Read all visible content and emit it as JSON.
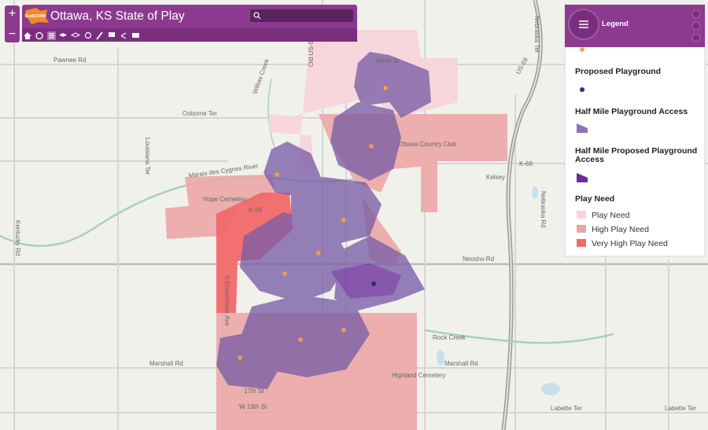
{
  "header": {
    "logo": "KaBOOM!",
    "title": "Ottawa, KS State of Play"
  },
  "zoom": {
    "in": "+",
    "out": "−"
  },
  "legend": {
    "title": "Legend",
    "items": [
      {
        "label": "Proposed Playground"
      },
      {
        "label": "Half Mile Playground Access"
      },
      {
        "label": "Half Mile Proposed Playground Access"
      }
    ],
    "play_need": {
      "title": "Play Need",
      "classes": [
        "Play Need",
        "High Play Need",
        "Very High Play Need"
      ]
    }
  },
  "map_labels": [
    "Pawnee Rd",
    "North St",
    "Osborne Ter",
    "Louisiana Ter",
    "Marais des Cygnes River",
    "Hope Cemetery",
    "K-68",
    "Ottawa Country Club",
    "Kelsey",
    "Nebraska Rd",
    "Neosho Rd",
    "Rock Creek",
    "Marshall Rd",
    "Marshall Rd",
    "Highland Cemetery",
    "17th St",
    "W 19th St",
    "Labette Ter",
    "Labette Ter",
    "Kentucky Rd",
    "S Eisenhower Ave",
    "Old US-59",
    "Willow Creek",
    "US-59",
    "K-68",
    "Nebraska Ter"
  ]
}
